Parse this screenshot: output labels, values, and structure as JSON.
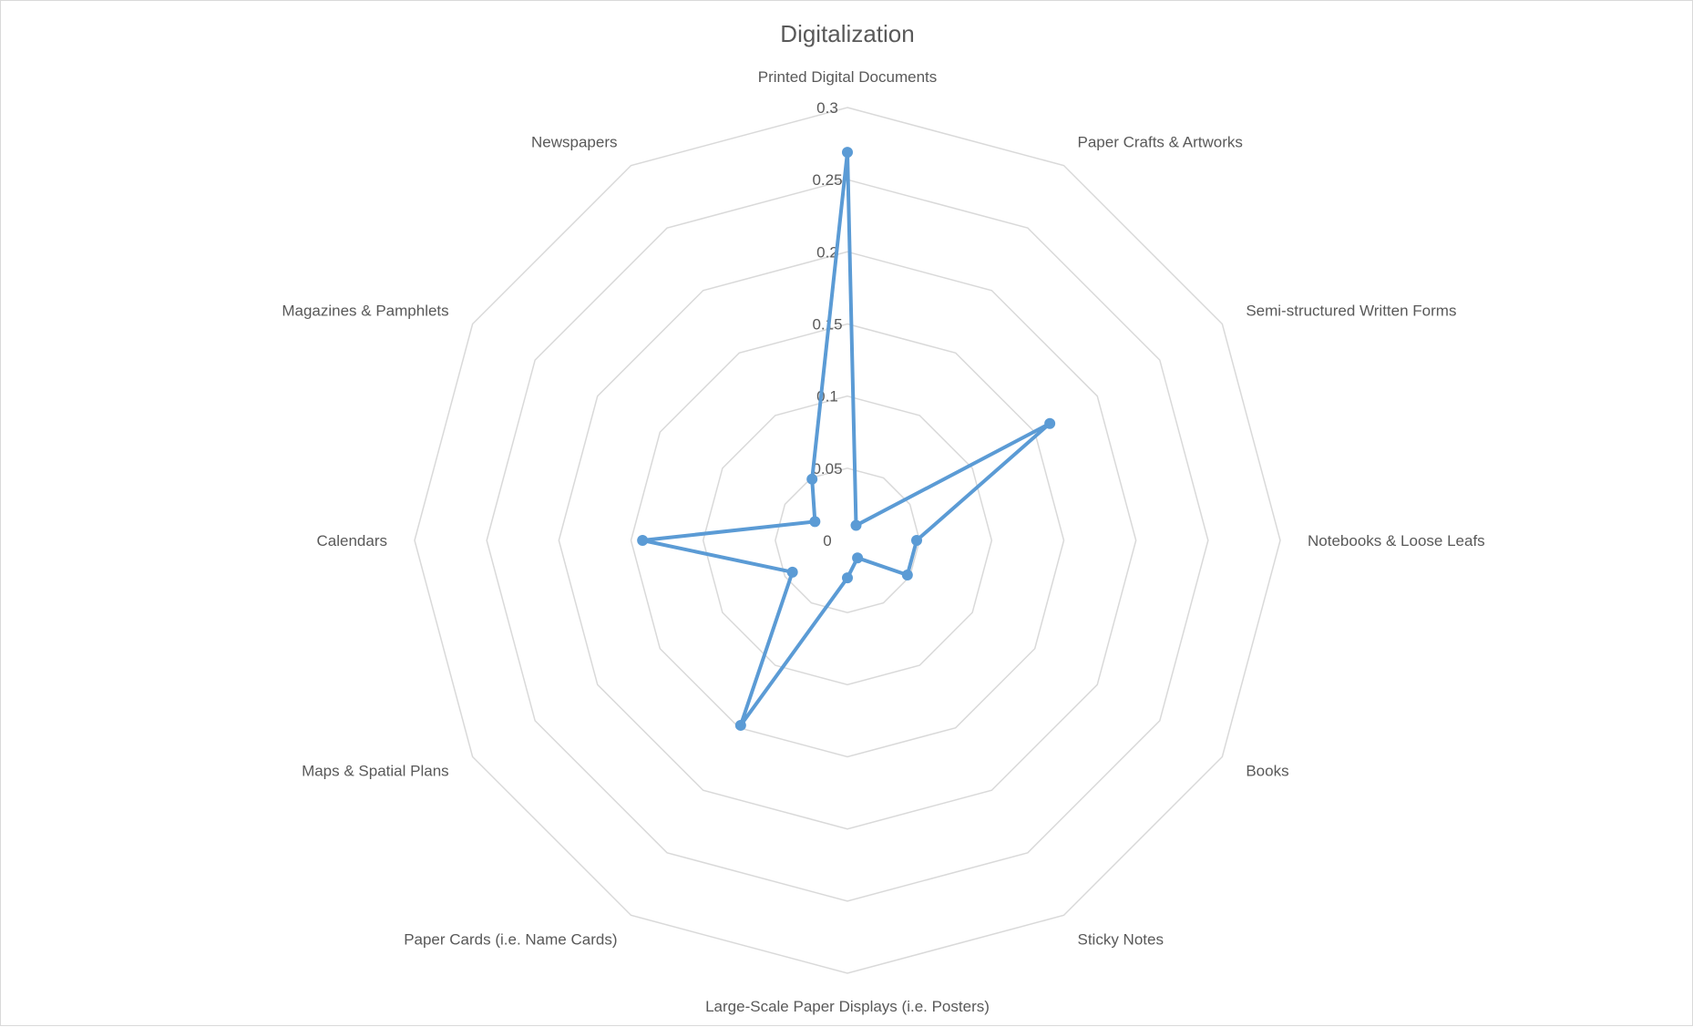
{
  "chart_data": {
    "type": "radar",
    "title": "Digitalization",
    "categories": [
      "Printed Digital Documents",
      "Paper Crafts & Artworks",
      "Semi-structured Written Forms",
      "Notebooks & Loose Leafs",
      "Books",
      "Sticky Notes",
      "Large-Scale Paper Displays (i.e. Posters)",
      "Paper Cards (i.e. Name Cards)",
      "Maps & Spatial Plans",
      "Calendars",
      "Magazines & Pamphlets",
      "Newspapers"
    ],
    "series": [
      {
        "values": [
          0.269,
          0.012,
          0.162,
          0.048,
          0.048,
          0.014,
          0.026,
          0.148,
          0.044,
          0.142,
          0.026,
          0.049
        ]
      }
    ],
    "rlim": [
      0,
      0.3
    ],
    "ticks": [
      0,
      0.05,
      0.1,
      0.15,
      0.2,
      0.25,
      0.3
    ],
    "tick_labels": [
      "0",
      "0.05",
      "0.1",
      "0.15",
      "0.2",
      "0.25",
      "0.3"
    ],
    "grid": true,
    "legend": "none",
    "colors": {
      "series": "#5b9bd5",
      "grid": "#d9d9d9",
      "text": "#595959"
    }
  }
}
